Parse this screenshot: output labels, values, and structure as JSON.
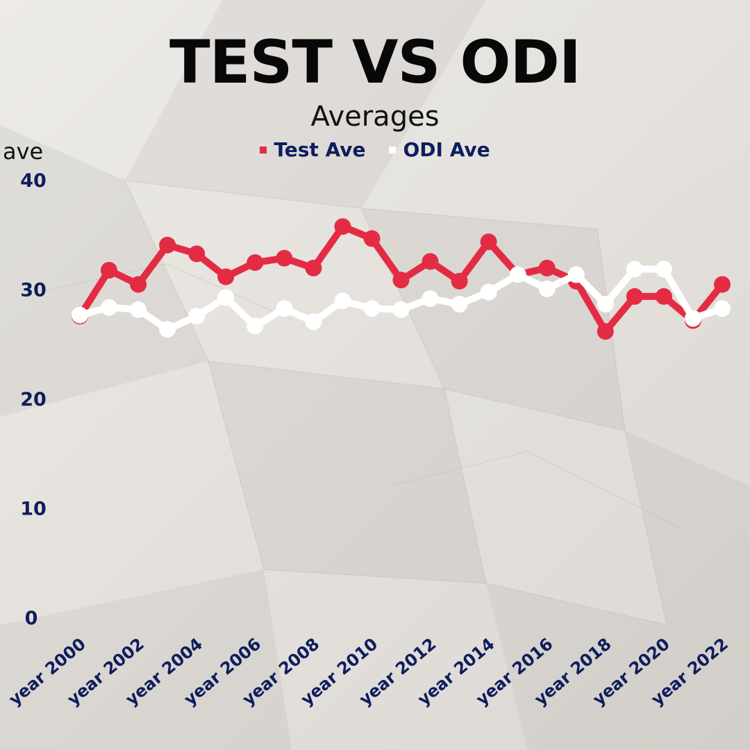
{
  "colors": {
    "background": "#e3e0dc",
    "title": "#080808",
    "tick_text": "#0e1d5c",
    "test_series": "#e32c44",
    "odi_series": "#ffffff"
  },
  "chart_data": {
    "type": "line",
    "title": "TEST VS ODI",
    "subtitle": "Averages",
    "xlabel": "",
    "ylabel": "ave",
    "ylim": [
      0,
      40
    ],
    "yticks": [
      0,
      10,
      20,
      30,
      40
    ],
    "grid": false,
    "legend_position": "top-center",
    "x": [
      2000,
      2001,
      2002,
      2003,
      2004,
      2005,
      2006,
      2007,
      2008,
      2009,
      2010,
      2011,
      2012,
      2013,
      2014,
      2015,
      2016,
      2017,
      2018,
      2019,
      2020,
      2021,
      2022
    ],
    "x_tick_labels": [
      "year 2000",
      "year 2002",
      "year 2004",
      "year 2006",
      "year 2008",
      "year 2010",
      "year 2012",
      "year 2014",
      "year 2016",
      "year 2018",
      "year 2020",
      "year 2022"
    ],
    "x_tick_values": [
      2000,
      2002,
      2004,
      2006,
      2008,
      2010,
      2012,
      2014,
      2016,
      2018,
      2020,
      2022
    ],
    "series": [
      {
        "name": "Test Ave",
        "color": "#e32c44",
        "values": [
          27.6,
          31.8,
          30.5,
          34.1,
          33.3,
          31.2,
          32.5,
          32.9,
          32.0,
          35.8,
          34.7,
          30.9,
          32.6,
          30.8,
          34.4,
          31.4,
          32.0,
          30.8,
          26.2,
          29.4,
          29.4,
          27.2,
          30.5
        ]
      },
      {
        "name": "ODI Ave",
        "color": "#ffffff",
        "values": [
          27.7,
          28.4,
          28.2,
          26.4,
          27.6,
          29.3,
          26.7,
          28.3,
          27.1,
          29.0,
          28.3,
          28.2,
          29.2,
          28.7,
          29.8,
          31.4,
          30.1,
          31.4,
          28.7,
          31.9,
          31.9,
          27.4,
          28.3
        ]
      }
    ]
  }
}
